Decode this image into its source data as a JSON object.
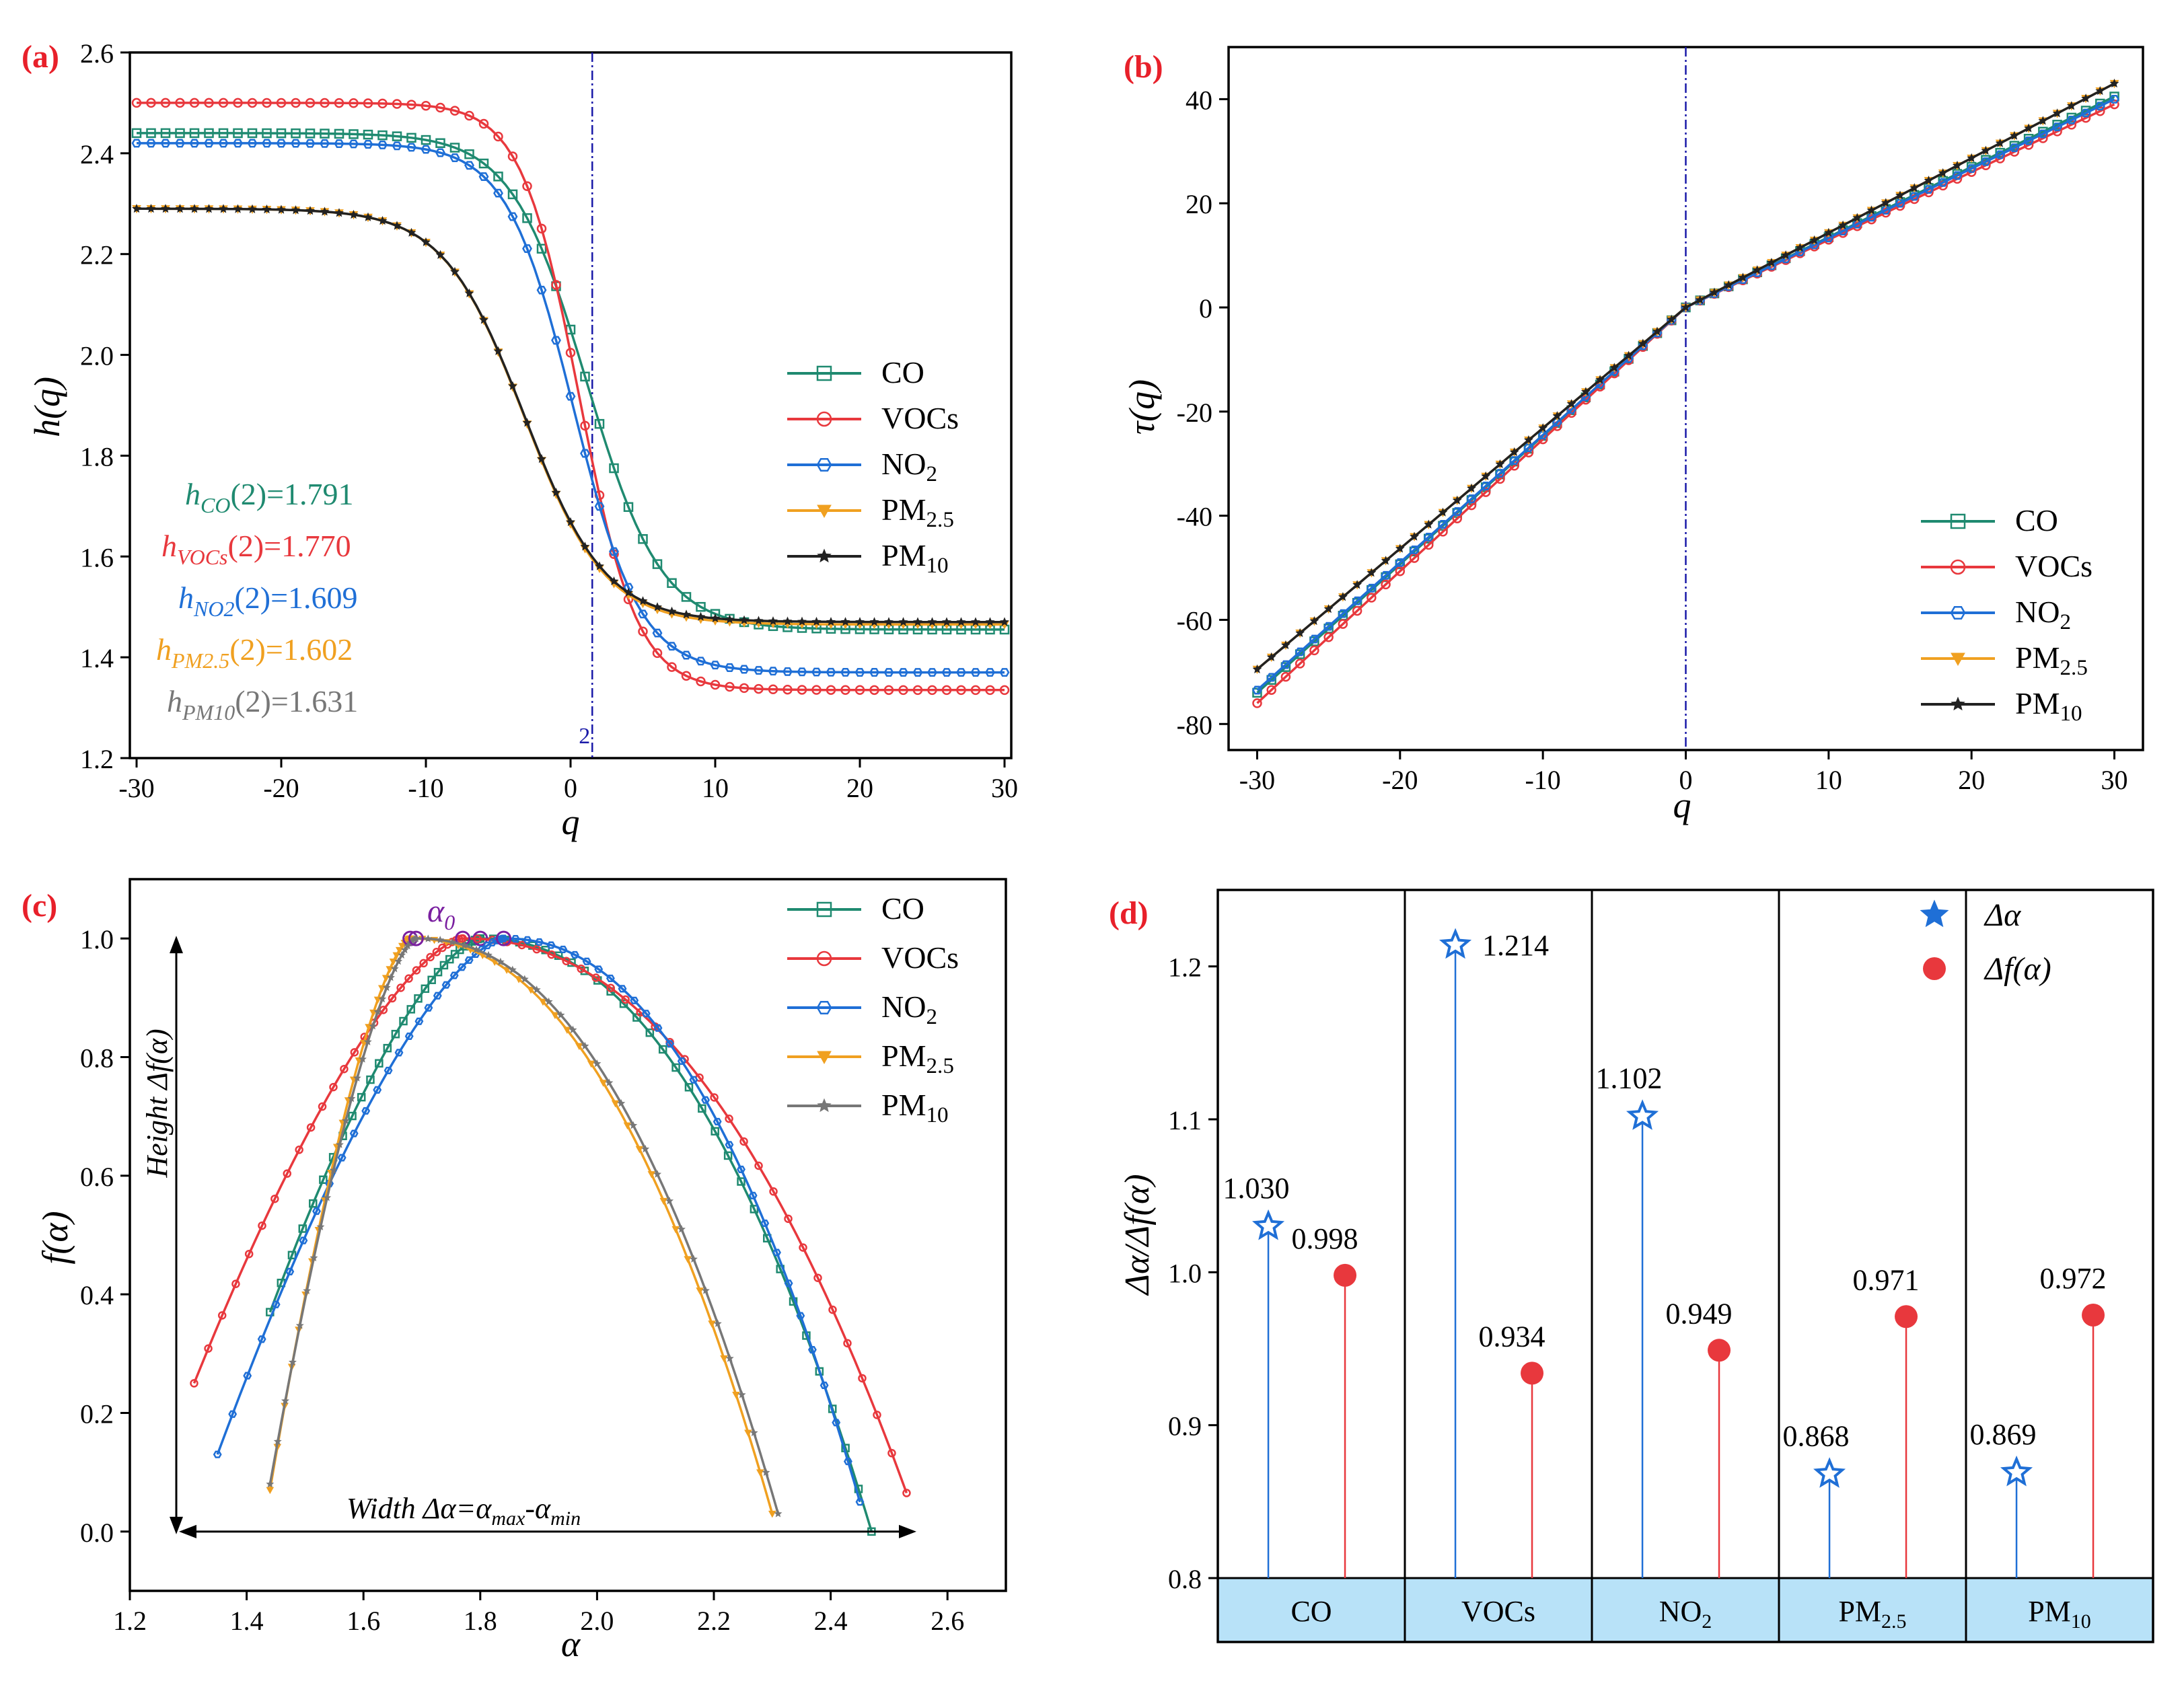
{
  "colors": {
    "CO": "#1f8a70",
    "VOCs": "#e8383d",
    "NO2": "#1f6fd6",
    "PM25": "#f0a020",
    "PM10": "#222222",
    "PM10c": "#777777",
    "label": "#e8202a",
    "divider": "#1a1aa8",
    "band": "#b8e2f8"
  },
  "chart_data": [
    {
      "id": "a",
      "panel_label": "(a)",
      "type": "line",
      "xlabel": "q",
      "ylabel": "h(q)",
      "xlim": [
        -30,
        30
      ],
      "ylim": [
        1.2,
        2.6
      ],
      "xticks": [
        "-30",
        "-20",
        "-10",
        "0",
        "10",
        "20",
        "30"
      ],
      "yticks": [
        "1.2",
        "1.4",
        "1.6",
        "1.8",
        "2.0",
        "2.2",
        "2.4",
        "2.6"
      ],
      "vline": {
        "x": 1.5,
        "label": "2"
      },
      "series": [
        {
          "name": "CO",
          "main": "CO",
          "sub": "",
          "hmax": 2.44,
          "hmin": 1.455,
          "q0": 1.1,
          "w": 2.6
        },
        {
          "name": "VOCs",
          "main": "VOCs",
          "sub": "",
          "hmax": 2.5,
          "hmin": 1.335,
          "q0": 0.6,
          "w": 2.0
        },
        {
          "name": "NO2",
          "main": "NO",
          "sub": "2",
          "hmax": 2.42,
          "hmin": 1.37,
          "q0": 0.2,
          "w": 2.3
        },
        {
          "name": "PM2.5",
          "main": "PM",
          "sub": "2.5",
          "hmax": 2.29,
          "hmin": 1.465,
          "q0": -3.2,
          "w": 2.8
        },
        {
          "name": "PM10",
          "main": "PM",
          "sub": "10",
          "hmax": 2.29,
          "hmin": 1.47,
          "q0": -3.2,
          "w": 2.8
        }
      ],
      "annotations": [
        {
          "sub": "CO",
          "value": "(2)=1.791",
          "color": "CO"
        },
        {
          "sub": "VOCs",
          "value": "(2)=1.770",
          "color": "VOCs"
        },
        {
          "sub": "NO2",
          "value": "(2)=1.609",
          "color": "NO2"
        },
        {
          "sub": "PM2.5",
          "value": "(2)=1.602",
          "color": "PM25"
        },
        {
          "sub": "PM10",
          "value": "(2)=1.631",
          "color": "PM10c"
        }
      ]
    },
    {
      "id": "b",
      "panel_label": "(b)",
      "type": "line",
      "xlabel": "q",
      "ylabel": "τ(q)",
      "xlim": [
        -32,
        32
      ],
      "ylim": [
        -85,
        50
      ],
      "xticks": [
        "-30",
        "-20",
        "-10",
        "0",
        "10",
        "20",
        "30"
      ],
      "yticks": [
        "-80",
        "-60",
        "-40",
        "-20",
        "0",
        "20",
        "40"
      ],
      "vline": {
        "x": 0
      },
      "series": [
        {
          "name": "CO",
          "main": "CO",
          "sub": "",
          "left": -74,
          "right": 40.5
        },
        {
          "name": "VOCs",
          "main": "VOCs",
          "sub": "",
          "left": -76,
          "right": 39
        },
        {
          "name": "NO2",
          "main": "NO",
          "sub": "2",
          "left": -73.5,
          "right": 40
        },
        {
          "name": "PM2.5",
          "main": "PM",
          "sub": "2.5",
          "left": -69.5,
          "right": 43
        },
        {
          "name": "PM10",
          "main": "PM",
          "sub": "10",
          "left": -69.5,
          "right": 43
        }
      ]
    },
    {
      "id": "c",
      "panel_label": "(c)",
      "type": "line",
      "xlabel": "α",
      "ylabel": "f(α)",
      "xlim": [
        1.2,
        2.7
      ],
      "ylim": [
        -0.1,
        1.1
      ],
      "xticks": [
        "1.2",
        "1.4",
        "1.6",
        "1.8",
        "2.0",
        "2.2",
        "2.4",
        "2.6"
      ],
      "yticks": [
        "0.0",
        "0.2",
        "0.4",
        "0.6",
        "0.8",
        "1.0"
      ],
      "peak_label": "α",
      "peak_sub": "0",
      "height_label": "Height Δf(α)",
      "width_label": {
        "pre": "Width Δα=α",
        "max": "max",
        "mid": "-α",
        "min": "min"
      },
      "series": [
        {
          "name": "CO",
          "main": "CO",
          "sub": "",
          "left": [
            1.44,
            0.37
          ],
          "peak": [
            1.8,
            1.0
          ],
          "right": [
            2.47,
            0.0
          ]
        },
        {
          "name": "VOCs",
          "main": "VOCs",
          "sub": "",
          "left": [
            1.31,
            0.25
          ],
          "peak": [
            1.77,
            1.0
          ],
          "right": [
            2.53,
            0.065
          ]
        },
        {
          "name": "NO2",
          "main": "NO",
          "sub": "2",
          "left": [
            1.35,
            0.13
          ],
          "peak": [
            1.84,
            1.0
          ],
          "right": [
            2.45,
            0.05
          ]
        },
        {
          "name": "PM2.5",
          "main": "PM",
          "sub": "2.5",
          "left": [
            1.44,
            0.07
          ],
          "peak": [
            1.68,
            1.0
          ],
          "right": [
            2.3,
            0.03
          ]
        },
        {
          "name": "PM10",
          "main": "PM",
          "sub": "10",
          "left": [
            1.44,
            0.08
          ],
          "peak": [
            1.69,
            1.0
          ],
          "right": [
            2.31,
            0.03
          ]
        }
      ]
    },
    {
      "id": "d",
      "panel_label": "(d)",
      "type": "stem",
      "ylabel": "Δα/Δf(α)",
      "ylim": [
        0.8,
        1.25
      ],
      "yticks": [
        "0.8",
        "0.9",
        "1.0",
        "1.1",
        "1.2"
      ],
      "categories": [
        {
          "main": "CO",
          "sub": ""
        },
        {
          "main": "VOCs",
          "sub": ""
        },
        {
          "main": "NO",
          "sub": "2"
        },
        {
          "main": "PM",
          "sub": "2.5"
        },
        {
          "main": "PM",
          "sub": "10"
        }
      ],
      "delta_alpha": [
        1.03,
        1.214,
        1.102,
        0.868,
        0.869
      ],
      "delta_f": [
        0.998,
        0.934,
        0.949,
        0.971,
        0.972
      ],
      "delta_alpha_labels": [
        "1.030",
        "1.214",
        "1.102",
        "0.868",
        "0.869"
      ],
      "delta_f_labels": [
        "0.998",
        "0.934",
        "0.949",
        "0.971",
        "0.972"
      ],
      "legend": [
        "Δα",
        "Δf(α)"
      ]
    }
  ]
}
